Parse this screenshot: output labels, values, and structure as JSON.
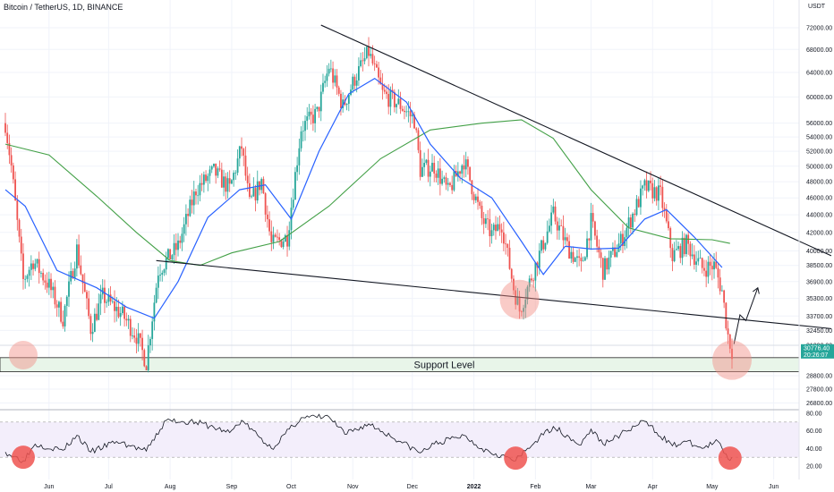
{
  "header": {
    "symbol_title": "Bitcoin / TetherUS, 1D, BINANCE",
    "price_unit": "USDT"
  },
  "price_badge": {
    "price": "30776.40",
    "countdown": "20:26:07",
    "color": "#26a69a"
  },
  "support": {
    "label": "Support Level",
    "low": 29100,
    "high": 30200
  },
  "colors": {
    "up": "#26a69a",
    "down": "#ef5350",
    "ma_fast": "#2962ff",
    "ma_slow": "#43a047",
    "highlight": "#f28b82"
  },
  "chart_data": [
    {
      "type": "candlestick",
      "title": "Bitcoin / TetherUS, 1D, BINANCE",
      "x_tick_labels": [
        "Jun",
        "Jul",
        "Aug",
        "Sep",
        "Oct",
        "Nov",
        "Dec",
        "2022",
        "Feb",
        "Mar",
        "Apr",
        "May",
        "Jun"
      ],
      "y_tick_labels": [
        "72000.00",
        "68000.00",
        "64000.00",
        "60000.00",
        "56000.00",
        "54000.00",
        "52000.00",
        "50000.00",
        "48000.00",
        "46000.00",
        "44000.00",
        "42000.00",
        "40000.00",
        "38500.00",
        "36900.00",
        "35300.00",
        "33700.00",
        "32450.00",
        "31200.00",
        "28800.00",
        "27800.00",
        "26800.00"
      ],
      "y_scale": "log",
      "ylim": [
        26500,
        74500
      ],
      "last_price": 30776.4,
      "price_path": [
        {
          "date": "2021-05-10",
          "close": 56000
        },
        {
          "date": "2021-05-13",
          "close": 50000
        },
        {
          "date": "2021-05-19",
          "close": 37000
        },
        {
          "date": "2021-05-24",
          "close": 39000
        },
        {
          "date": "2021-06-01",
          "close": 36500
        },
        {
          "date": "2021-06-08",
          "close": 33500
        },
        {
          "date": "2021-06-15",
          "close": 40200
        },
        {
          "date": "2021-06-22",
          "close": 32600
        },
        {
          "date": "2021-06-28",
          "close": 35500
        },
        {
          "date": "2021-07-08",
          "close": 33800
        },
        {
          "date": "2021-07-15",
          "close": 32000
        },
        {
          "date": "2021-07-20",
          "close": 29800
        },
        {
          "date": "2021-07-26",
          "close": 38000
        },
        {
          "date": "2021-08-05",
          "close": 40500
        },
        {
          "date": "2021-08-14",
          "close": 47000
        },
        {
          "date": "2021-08-23",
          "close": 49300
        },
        {
          "date": "2021-08-31",
          "close": 47100
        },
        {
          "date": "2021-09-06",
          "close": 52600
        },
        {
          "date": "2021-09-10",
          "close": 45200
        },
        {
          "date": "2021-09-16",
          "close": 48200
        },
        {
          "date": "2021-09-21",
          "close": 40700
        },
        {
          "date": "2021-09-29",
          "close": 41500
        },
        {
          "date": "2021-10-06",
          "close": 55300
        },
        {
          "date": "2021-10-14",
          "close": 57500
        },
        {
          "date": "2021-10-20",
          "close": 65000
        },
        {
          "date": "2021-10-27",
          "close": 58500
        },
        {
          "date": "2021-11-02",
          "close": 63000
        },
        {
          "date": "2021-11-09",
          "close": 67500
        },
        {
          "date": "2021-11-16",
          "close": 60500
        },
        {
          "date": "2021-11-25",
          "close": 58700
        },
        {
          "date": "2021-12-02",
          "close": 56500
        },
        {
          "date": "2021-12-05",
          "close": 49500
        },
        {
          "date": "2021-12-12",
          "close": 50000
        },
        {
          "date": "2021-12-19",
          "close": 46700
        },
        {
          "date": "2021-12-27",
          "close": 50800
        },
        {
          "date": "2022-01-05",
          "close": 43500
        },
        {
          "date": "2022-01-10",
          "close": 41800
        },
        {
          "date": "2022-01-15",
          "close": 43000
        },
        {
          "date": "2022-01-21",
          "close": 36300
        },
        {
          "date": "2022-01-24",
          "close": 34200
        },
        {
          "date": "2022-02-01",
          "close": 38500
        },
        {
          "date": "2022-02-10",
          "close": 44000
        },
        {
          "date": "2022-02-17",
          "close": 40500
        },
        {
          "date": "2022-02-24",
          "close": 38300
        },
        {
          "date": "2022-03-01",
          "close": 43200
        },
        {
          "date": "2022-03-07",
          "close": 38000
        },
        {
          "date": "2022-03-16",
          "close": 41000
        },
        {
          "date": "2022-03-28",
          "close": 47300
        },
        {
          "date": "2022-04-05",
          "close": 46400
        },
        {
          "date": "2022-04-11",
          "close": 39500
        },
        {
          "date": "2022-04-18",
          "close": 40800
        },
        {
          "date": "2022-04-26",
          "close": 38200
        },
        {
          "date": "2022-05-02",
          "close": 38500
        },
        {
          "date": "2022-05-06",
          "close": 36000
        },
        {
          "date": "2022-05-09",
          "close": 32000
        },
        {
          "date": "2022-05-11",
          "close": 30776
        }
      ],
      "ma_fast_path": [
        {
          "date": "2021-05-10",
          "value": 47000
        },
        {
          "date": "2021-05-20",
          "value": 45000
        },
        {
          "date": "2021-06-05",
          "value": 38000
        },
        {
          "date": "2021-06-25",
          "value": 36300
        },
        {
          "date": "2021-07-10",
          "value": 34500
        },
        {
          "date": "2021-07-24",
          "value": 33500
        },
        {
          "date": "2021-08-05",
          "value": 36900
        },
        {
          "date": "2021-08-20",
          "value": 43700
        },
        {
          "date": "2021-09-05",
          "value": 47000
        },
        {
          "date": "2021-09-18",
          "value": 47600
        },
        {
          "date": "2021-10-01",
          "value": 43500
        },
        {
          "date": "2021-10-15",
          "value": 52000
        },
        {
          "date": "2021-10-30",
          "value": 60500
        },
        {
          "date": "2021-11-12",
          "value": 63000
        },
        {
          "date": "2021-11-28",
          "value": 59200
        },
        {
          "date": "2021-12-10",
          "value": 53000
        },
        {
          "date": "2021-12-25",
          "value": 48500
        },
        {
          "date": "2022-01-10",
          "value": 46000
        },
        {
          "date": "2022-01-25",
          "value": 41000
        },
        {
          "date": "2022-02-05",
          "value": 37600
        },
        {
          "date": "2022-02-16",
          "value": 40500
        },
        {
          "date": "2022-03-01",
          "value": 40200
        },
        {
          "date": "2022-03-15",
          "value": 40300
        },
        {
          "date": "2022-03-28",
          "value": 43500
        },
        {
          "date": "2022-04-08",
          "value": 44600
        },
        {
          "date": "2022-04-22",
          "value": 41500
        },
        {
          "date": "2022-05-06",
          "value": 38300
        }
      ],
      "ma_slow_path": [
        {
          "date": "2021-05-10",
          "value": 53000
        },
        {
          "date": "2021-06-01",
          "value": 51500
        },
        {
          "date": "2021-06-25",
          "value": 46200
        },
        {
          "date": "2021-07-15",
          "value": 42000
        },
        {
          "date": "2021-08-01",
          "value": 39000
        },
        {
          "date": "2021-08-16",
          "value": 38500
        },
        {
          "date": "2021-09-01",
          "value": 39800
        },
        {
          "date": "2021-09-25",
          "value": 41000
        },
        {
          "date": "2021-10-20",
          "value": 45000
        },
        {
          "date": "2021-11-15",
          "value": 51000
        },
        {
          "date": "2021-12-10",
          "value": 55000
        },
        {
          "date": "2022-01-05",
          "value": 56000
        },
        {
          "date": "2022-01-25",
          "value": 56500
        },
        {
          "date": "2022-02-10",
          "value": 53800
        },
        {
          "date": "2022-03-01",
          "value": 47000
        },
        {
          "date": "2022-03-20",
          "value": 42500
        },
        {
          "date": "2022-04-10",
          "value": 41300
        },
        {
          "date": "2022-05-01",
          "value": 41200
        },
        {
          "date": "2022-05-10",
          "value": 40800
        }
      ],
      "trendlines": [
        {
          "name": "descending-resistance",
          "from": {
            "date": "2021-10-16",
            "value": 72500
          },
          "to": {
            "date": "2022-06-30",
            "value": 39500
          }
        },
        {
          "name": "descending-support",
          "from": {
            "date": "2021-07-25",
            "value": 39000
          },
          "to": {
            "date": "2022-06-30",
            "value": 32600
          }
        }
      ],
      "projection_path": [
        {
          "date": "2022-05-12",
          "value": 31300
        },
        {
          "date": "2022-05-15",
          "value": 33800
        },
        {
          "date": "2022-05-18",
          "value": 33300
        },
        {
          "date": "2022-05-24",
          "value": 36300
        }
      ],
      "highlight_circles": [
        {
          "date": "2021-05-19",
          "value": 30400
        },
        {
          "date": "2022-01-24",
          "value": 35200
        },
        {
          "date": "2022-05-11",
          "value": 30000
        }
      ]
    },
    {
      "type": "line",
      "title": "",
      "y_tick_labels": [
        "80.00",
        "60.00",
        "40.00",
        "20.00"
      ],
      "ylim": [
        12,
        80
      ],
      "band": [
        30,
        70
      ],
      "rsi_path": [
        {
          "date": "2021-05-10",
          "value": 36
        },
        {
          "date": "2021-05-19",
          "value": 26
        },
        {
          "date": "2021-05-25",
          "value": 45
        },
        {
          "date": "2021-06-08",
          "value": 38
        },
        {
          "date": "2021-06-15",
          "value": 55
        },
        {
          "date": "2021-06-22",
          "value": 36
        },
        {
          "date": "2021-07-05",
          "value": 48
        },
        {
          "date": "2021-07-20",
          "value": 37
        },
        {
          "date": "2021-07-30",
          "value": 72
        },
        {
          "date": "2021-08-14",
          "value": 70
        },
        {
          "date": "2021-08-31",
          "value": 58
        },
        {
          "date": "2021-09-06",
          "value": 72
        },
        {
          "date": "2021-09-21",
          "value": 40
        },
        {
          "date": "2021-10-06",
          "value": 75
        },
        {
          "date": "2021-10-20",
          "value": 76
        },
        {
          "date": "2021-10-28",
          "value": 56
        },
        {
          "date": "2021-11-09",
          "value": 68
        },
        {
          "date": "2021-11-25",
          "value": 48
        },
        {
          "date": "2021-12-05",
          "value": 35
        },
        {
          "date": "2021-12-12",
          "value": 45
        },
        {
          "date": "2021-12-27",
          "value": 55
        },
        {
          "date": "2022-01-05",
          "value": 40
        },
        {
          "date": "2022-01-22",
          "value": 26
        },
        {
          "date": "2022-02-01",
          "value": 48
        },
        {
          "date": "2022-02-10",
          "value": 65
        },
        {
          "date": "2022-02-24",
          "value": 44
        },
        {
          "date": "2022-03-01",
          "value": 62
        },
        {
          "date": "2022-03-07",
          "value": 45
        },
        {
          "date": "2022-03-28",
          "value": 71
        },
        {
          "date": "2022-04-11",
          "value": 43
        },
        {
          "date": "2022-04-18",
          "value": 48
        },
        {
          "date": "2022-04-26",
          "value": 40
        },
        {
          "date": "2022-05-04",
          "value": 48
        },
        {
          "date": "2022-05-09",
          "value": 28
        },
        {
          "date": "2022-05-11",
          "value": 30
        }
      ],
      "highlight_circles": [
        {
          "date": "2021-05-19",
          "value": 30
        },
        {
          "date": "2022-01-22",
          "value": 29
        },
        {
          "date": "2022-05-10",
          "value": 29
        }
      ]
    }
  ]
}
